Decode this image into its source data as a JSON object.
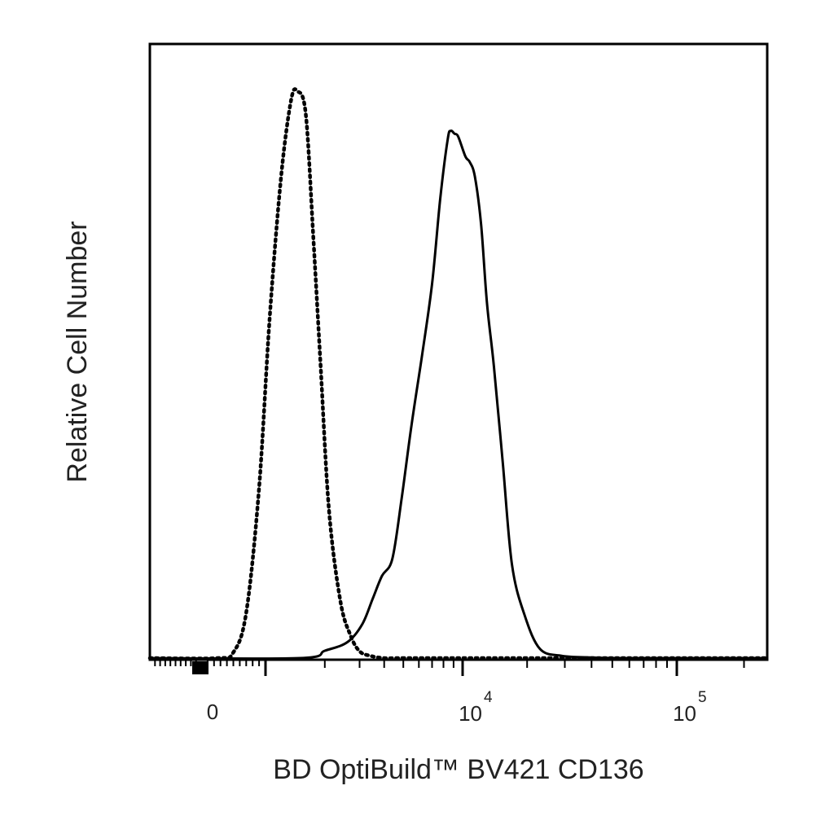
{
  "chart_data": {
    "type": "line",
    "title": "",
    "xlabel": "BD OptiBuild™ BV421 CD136",
    "ylabel": "Relative Cell Number",
    "x_scale": "biexponential",
    "xlim": [
      -1000,
      250000
    ],
    "ylim": [
      0,
      1.0
    ],
    "grid": false,
    "legend": "none",
    "x_ticks": [
      {
        "value": 0,
        "label": "0"
      },
      {
        "value": 10000,
        "base": "10",
        "exp": "4"
      },
      {
        "value": 100000,
        "base": "10",
        "exp": "5"
      }
    ],
    "series": [
      {
        "style": "dotted",
        "color": "#000000",
        "x": [
          -1000,
          250,
          500,
          700,
          900,
          1050,
          1200,
          1350,
          1450,
          1600,
          1750,
          1900,
          2100,
          2400,
          2700,
          3000,
          3400,
          4000,
          5000,
          10000,
          250000
        ],
        "y": [
          0,
          0,
          0.01,
          0.08,
          0.3,
          0.6,
          0.85,
          0.985,
          1.0,
          0.96,
          0.74,
          0.52,
          0.26,
          0.1,
          0.04,
          0.012,
          0.004,
          0,
          0,
          0,
          0
        ]
      },
      {
        "style": "solid",
        "color": "#000000",
        "x": [
          -1000,
          1500,
          2000,
          2600,
          3100,
          3500,
          3900,
          4400,
          4900,
          5500,
          6200,
          7000,
          7700,
          8400,
          8700,
          9100,
          9500,
          10300,
          10800,
          11400,
          12200,
          13000,
          14000,
          15400,
          17000,
          19500,
          23000,
          29000,
          40000,
          60000,
          250000
        ],
        "y": [
          0,
          0,
          0.013,
          0.028,
          0.06,
          0.105,
          0.145,
          0.175,
          0.28,
          0.41,
          0.53,
          0.66,
          0.81,
          0.915,
          0.93,
          0.925,
          0.92,
          0.885,
          0.875,
          0.85,
          0.765,
          0.625,
          0.515,
          0.345,
          0.165,
          0.075,
          0.016,
          0.004,
          0.001,
          0,
          0
        ]
      }
    ]
  }
}
